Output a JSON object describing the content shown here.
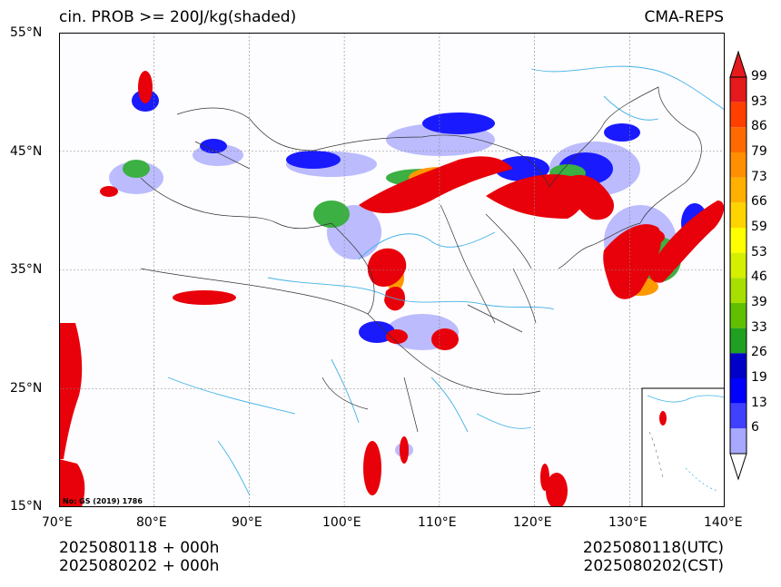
{
  "title": "cin. PROB >= 200J/kg(shaded)",
  "model": "CMA-REPS",
  "map_approval": "No: GS (2019) 1786",
  "axes": {
    "lon_min": 70,
    "lon_max": 140,
    "lat_min": 15,
    "lat_max": 55,
    "lon_ticks": [
      "70°E",
      "80°E",
      "90°E",
      "100°E",
      "110°E",
      "120°E",
      "130°E",
      "140°E"
    ],
    "lat_ticks": [
      "55°N",
      "45°N",
      "35°N",
      "25°N",
      "15°N"
    ],
    "grid": true
  },
  "footer": {
    "init_utc": "2025080118  +  000h",
    "init_cst": "2025080202  +  000h",
    "valid_utc": "2025080118(UTC)",
    "valid_cst": "2025080202(CST)"
  },
  "colorbar": {
    "levels": [
      "99",
      "93",
      "86",
      "79",
      "73",
      "66",
      "59",
      "53",
      "46",
      "39",
      "33",
      "26",
      "19",
      "13",
      "6"
    ],
    "colors": [
      "#e41a1c",
      "#ff3f00",
      "#ff6a00",
      "#ff8f00",
      "#ffb000",
      "#ffd400",
      "#ffff00",
      "#d4ef00",
      "#a6df00",
      "#60c000",
      "#20a020",
      "#0000c8",
      "#0000ff",
      "#4040ff",
      "#a8a8ff"
    ],
    "over_color": "#e41a1c",
    "under_color": "#ffffff"
  },
  "colors": {
    "high": "#e8000a",
    "mid": "#ff9900",
    "green": "#3cb043",
    "blue": "#1a1aff",
    "light_blue": "#a0a0ff",
    "river": "#42b4e6",
    "border": "#333333"
  }
}
